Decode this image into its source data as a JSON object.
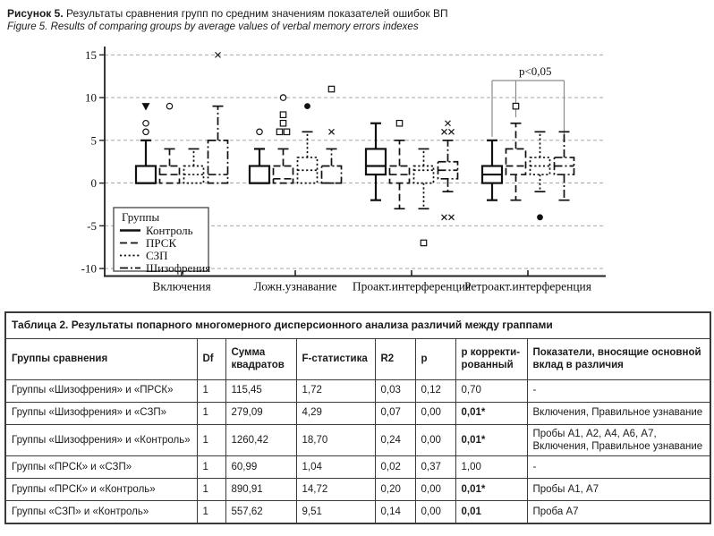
{
  "caption": {
    "ru_label": "Рисунок 5.",
    "ru_text": " Результаты сравнения групп по средним значениям показателей ошибок ВП",
    "en_text": "Figure 5. Results of comparing groups by average values of verbal memory errors indexes"
  },
  "chart_data": {
    "type": "boxplot",
    "title": "",
    "xlabel": "",
    "ylabel": "",
    "ylim": [
      -10,
      15
    ],
    "yticks": [
      15,
      10,
      5,
      0,
      -5,
      -10
    ],
    "grid": "horizontal-dashed",
    "categories": [
      "Включения",
      "Ложн.узнавание",
      "Проакт.интерференция",
      "Ретроакт.интерференция"
    ],
    "legend_title": "Группы",
    "legend_position": "bottom-left-inside",
    "series": [
      {
        "name": "Контроль",
        "style": "solid",
        "boxes": [
          {
            "lo": 0,
            "q1": 0,
            "med": 0,
            "q3": 2,
            "hi": 5,
            "outliers": [
              {
                "v": 9,
                "sym": "triangle-down"
              },
              {
                "v": 7,
                "sym": "circle"
              },
              {
                "v": 6,
                "sym": "circle"
              }
            ]
          },
          {
            "lo": 0,
            "q1": 0,
            "med": 0,
            "q3": 2,
            "hi": 4,
            "outliers": [
              {
                "v": 6,
                "sym": "circle"
              }
            ]
          },
          {
            "lo": -2,
            "q1": 1,
            "med": 2,
            "q3": 4,
            "hi": 7,
            "outliers": []
          },
          {
            "lo": -2,
            "q1": 0,
            "med": 1,
            "q3": 2,
            "hi": 5,
            "outliers": []
          }
        ]
      },
      {
        "name": "ПРСК",
        "style": "dashed",
        "boxes": [
          {
            "lo": 0,
            "q1": 0,
            "med": 1,
            "q3": 2,
            "hi": 4,
            "outliers": [
              {
                "v": 9,
                "sym": "circle"
              }
            ]
          },
          {
            "lo": 0,
            "q1": 0,
            "med": 0.5,
            "q3": 2,
            "hi": 4,
            "outliers": [
              {
                "v": 10,
                "sym": "circle"
              },
              {
                "v": 8,
                "sym": "square"
              },
              {
                "v": 7,
                "sym": "square"
              },
              {
                "v": 6,
                "sym": "square",
                "dx": -4
              },
              {
                "v": 6,
                "sym": "square",
                "dx": 4
              }
            ]
          },
          {
            "lo": -3,
            "q1": 0,
            "med": 1,
            "q3": 2,
            "hi": 5,
            "outliers": [
              {
                "v": 7,
                "sym": "square"
              }
            ]
          },
          {
            "lo": -2,
            "q1": 1,
            "med": 2,
            "q3": 4,
            "hi": 7,
            "outliers": [
              {
                "v": 9,
                "sym": "square"
              }
            ]
          }
        ]
      },
      {
        "name": "СЗП",
        "style": "dotted",
        "boxes": [
          {
            "lo": 0,
            "q1": 0,
            "med": 1,
            "q3": 2,
            "hi": 4,
            "outliers": []
          },
          {
            "lo": 0,
            "q1": 0,
            "med": 1.5,
            "q3": 3,
            "hi": 6,
            "outliers": [
              {
                "v": 9,
                "sym": "circle-filled"
              }
            ]
          },
          {
            "lo": -3,
            "q1": 0,
            "med": 1.5,
            "q3": 2,
            "hi": 4,
            "outliers": [
              {
                "v": -7,
                "sym": "square"
              }
            ]
          },
          {
            "lo": -1,
            "q1": 1,
            "med": 2,
            "q3": 3,
            "hi": 6,
            "outliers": [
              {
                "v": -4,
                "sym": "circle-filled"
              }
            ]
          }
        ]
      },
      {
        "name": "Шизофрения",
        "style": "dashdot",
        "boxes": [
          {
            "lo": 0,
            "q1": 0,
            "med": 1,
            "q3": 5,
            "hi": 9,
            "outliers": [
              {
                "v": 15,
                "sym": "x"
              }
            ]
          },
          {
            "lo": 0,
            "q1": 0,
            "med": 0,
            "q3": 2,
            "hi": 4,
            "outliers": [
              {
                "v": 11,
                "sym": "square"
              },
              {
                "v": 6,
                "sym": "x"
              }
            ]
          },
          {
            "lo": -1,
            "q1": 0.5,
            "med": 1.5,
            "q3": 2.5,
            "hi": 5,
            "outliers": [
              {
                "v": 7,
                "sym": "x"
              },
              {
                "v": 6,
                "sym": "x",
                "dx": -4
              },
              {
                "v": 6,
                "sym": "x",
                "dx": 4
              },
              {
                "v": -4,
                "sym": "x",
                "dx": -4
              },
              {
                "v": -4,
                "sym": "x",
                "dx": 4
              }
            ]
          },
          {
            "lo": -2,
            "q1": 1,
            "med": 2,
            "q3": 3,
            "hi": 6,
            "outliers": []
          }
        ]
      }
    ],
    "annotation": {
      "text": "p<0,05",
      "category": 3,
      "from_series": 0,
      "to_series": [
        1,
        3
      ]
    }
  },
  "table": {
    "title": "Таблица 2. Результаты попарного многомерного дисперсионного анализа различий между граппами",
    "columns": [
      "Группы сравнения",
      "Df",
      "Сумма квадратов",
      "F-статистика",
      "R2",
      "p",
      "p корректи­рованный",
      "Показатели, вносящие основной вклад в различия"
    ],
    "rows": [
      {
        "group": "Группы «Шизофрения» и «ПРСК»",
        "df": "1",
        "ss": "115,45",
        "f": "1,72",
        "r2": "0,03",
        "p": "0,12",
        "p_adj": "0,70",
        "p_adj_bold": false,
        "contrib": "-"
      },
      {
        "group": "Группы «Шизофрения» и «СЗП»",
        "df": "1",
        "ss": "279,09",
        "f": "4,29",
        "r2": "0,07",
        "p": "0,00",
        "p_adj": "0,01*",
        "p_adj_bold": true,
        "contrib": "Включения, Правильное узнавание"
      },
      {
        "group": "Группы «Шизофрения» и «Контроль»",
        "df": "1",
        "ss": "1260,42",
        "f": "18,70",
        "r2": "0,24",
        "p": "0,00",
        "p_adj": "0,01*",
        "p_adj_bold": true,
        "contrib": "Пробы А1, А2, А4, А6, А7, Включения, Правильное узнавание"
      },
      {
        "group": "Группы «ПРСК» и «СЗП»",
        "df": "1",
        "ss": "60,99",
        "f": "1,04",
        "r2": "0,02",
        "p": "0,37",
        "p_adj": "1,00",
        "p_adj_bold": false,
        "contrib": "-"
      },
      {
        "group": "Группы «ПРСК» и «Контроль»",
        "df": "1",
        "ss": "890,91",
        "f": "14,72",
        "r2": "0,20",
        "p": "0,00",
        "p_adj": "0,01*",
        "p_adj_bold": true,
        "contrib": "Пробы А1, А7"
      },
      {
        "group": "Группы «СЗП» и «Контроль»",
        "df": "1",
        "ss": "557,62",
        "f": "9,51",
        "r2": "0,14",
        "p": "0,00",
        "p_adj": "0,01",
        "p_adj_bold": true,
        "contrib": "Проба А7"
      }
    ]
  }
}
